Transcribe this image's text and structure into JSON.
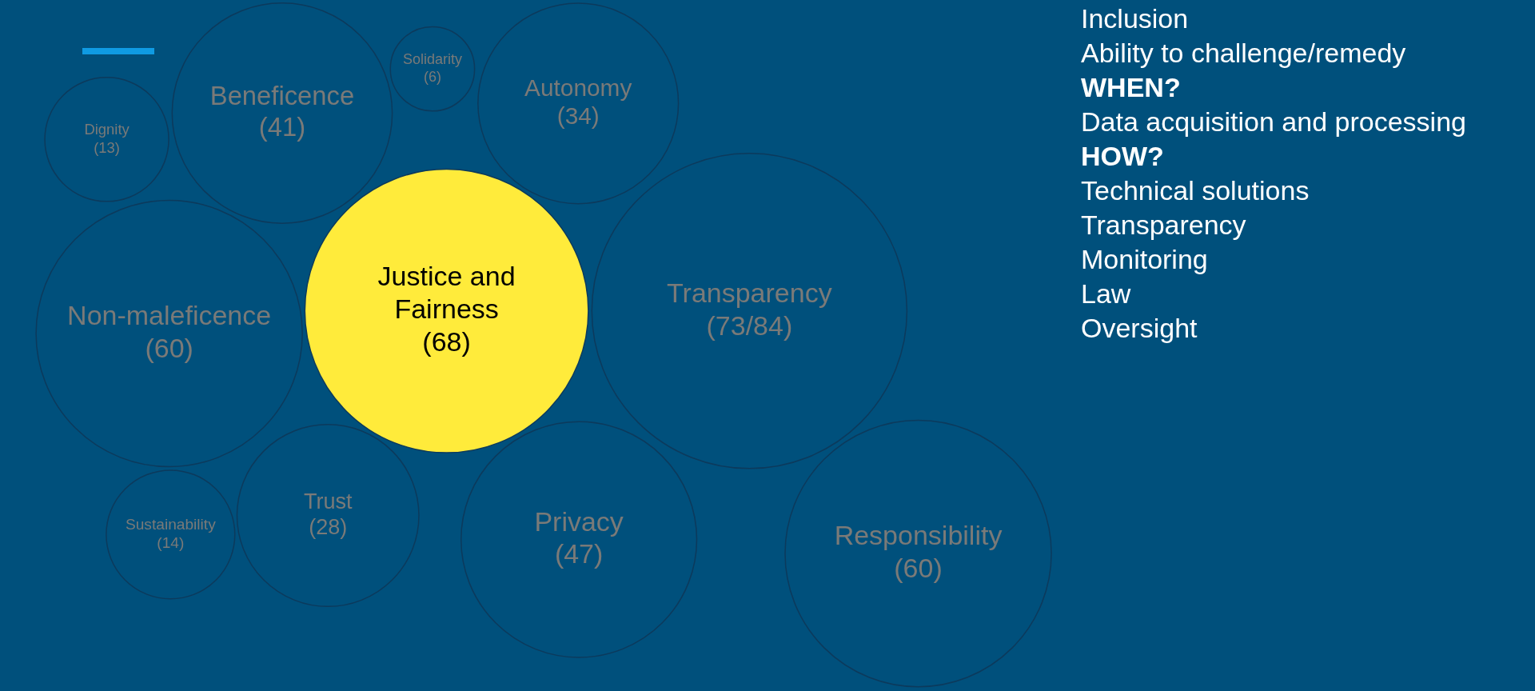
{
  "chart_data": {
    "type": "other",
    "categories": [
      "Justice and Fairness",
      "Transparency",
      "Non-maleficence",
      "Responsibility",
      "Privacy",
      "Beneficence",
      "Autonomy",
      "Trust",
      "Sustainability",
      "Dignity",
      "Solidarity"
    ],
    "values": [
      68,
      84,
      60,
      60,
      47,
      41,
      34,
      28,
      14,
      13,
      6
    ],
    "value_labels": [
      "(68)",
      "(73/84)",
      "(60)",
      "(60)",
      "(47)",
      "(41)",
      "(34)",
      "(28)",
      "(14)",
      "(13)",
      "(6)"
    ],
    "colors": [
      "#ffeb3b",
      "#00507c",
      "#00507c",
      "#00507c",
      "#00507c",
      "#00507c",
      "#00507c",
      "#00507c",
      "#00507c",
      "#00507c",
      "#00507c"
    ],
    "annotations": [
      "Inclusion",
      "Ability to challenge/remedy",
      "WHEN?",
      "Data acquisition and processing",
      "HOW?",
      "Technical solutions",
      "Transparency",
      "Monitoring",
      "Law",
      "Oversight"
    ]
  }
}
